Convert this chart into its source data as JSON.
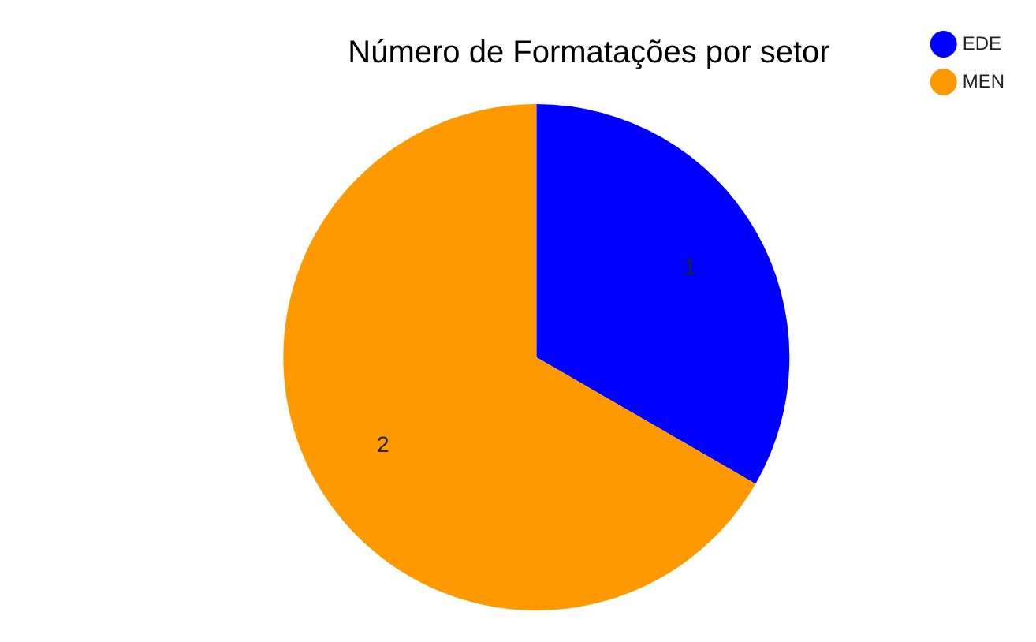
{
  "chart_data": {
    "type": "pie",
    "title": "Número de Formatações por setor",
    "categories": [
      "EDE",
      "MEN"
    ],
    "values": [
      1,
      2
    ],
    "colors": [
      "#0000ff",
      "#ff9900"
    ],
    "data_labels": true,
    "legend": "top right"
  }
}
